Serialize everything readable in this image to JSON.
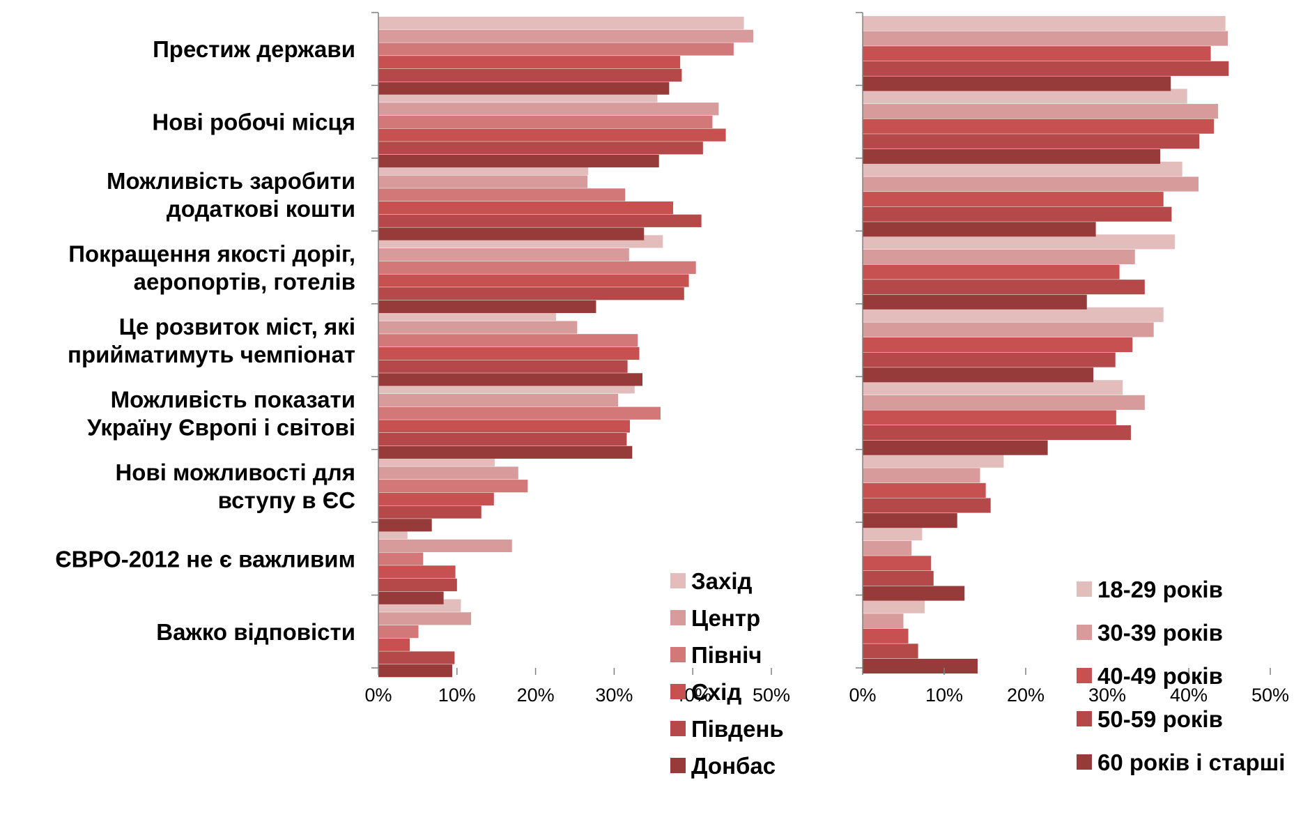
{
  "chart_data": [
    {
      "type": "bar",
      "orientation": "horizontal",
      "categories": [
        "Престиж держави",
        "Нові робочі місця",
        "Можливість заробити додаткові кошти",
        "Покращення якості доріг, аеропортів, готелів",
        "Це розвиток міст, які прийматимуть чемпіонат",
        "Можливість показати Україну Європі і світові",
        "Нові можливості для вступу в ЄС",
        "ЄВРО-2012 не є важливим",
        "Важко відповісти"
      ],
      "category_lines": [
        [
          "Престиж держави"
        ],
        [
          "Нові робочі місця"
        ],
        [
          "Можливість заробити",
          "додаткові кошти"
        ],
        [
          "Покращення якості доріг,",
          "аеропортів, готелів"
        ],
        [
          "Це розвиток міст, які",
          "прийматимуть чемпіонат"
        ],
        [
          "Можливість показати",
          "Україну Європі і світові"
        ],
        [
          "Нові можливості для",
          "вступу в ЄС"
        ],
        [
          "ЄВРО-2012 не є важливим"
        ],
        [
          "Важко відповісти"
        ]
      ],
      "series": [
        {
          "name": "Захід",
          "color": "#e3bcbc",
          "values": [
            46.5,
            35.5,
            26.7,
            36.2,
            22.6,
            32.6,
            14.8,
            3.7,
            10.5
          ]
        },
        {
          "name": "Центр",
          "color": "#d89b9b",
          "values": [
            47.7,
            43.3,
            26.6,
            31.9,
            25.3,
            30.5,
            17.8,
            17.0,
            11.8
          ]
        },
        {
          "name": "Північ",
          "color": "#d37878",
          "values": [
            45.2,
            42.5,
            31.4,
            40.4,
            33.0,
            35.9,
            19.0,
            5.7,
            5.1
          ]
        },
        {
          "name": "Схід",
          "color": "#c75050",
          "values": [
            38.4,
            44.2,
            37.5,
            39.5,
            33.2,
            32.0,
            14.7,
            9.8,
            4.0
          ]
        },
        {
          "name": "Південь",
          "color": "#b54848",
          "values": [
            38.6,
            41.3,
            41.1,
            38.9,
            31.7,
            31.6,
            13.1,
            10.0,
            9.7
          ]
        },
        {
          "name": "Донбас",
          "color": "#963a3a",
          "values": [
            37.0,
            35.7,
            33.8,
            27.7,
            33.6,
            32.3,
            6.8,
            8.3,
            9.4
          ]
        }
      ],
      "xlim": [
        0,
        50
      ],
      "xticks": [
        "0%",
        "10%",
        "20%",
        "30%",
        "40%",
        "50%"
      ],
      "legend_position": "bottom-right"
    },
    {
      "type": "bar",
      "orientation": "horizontal",
      "categories": [
        "Престиж держави",
        "Нові робочі місця",
        "Можливість заробити додаткові кошти",
        "Покращення якості доріг, аеропортів, готелів",
        "Це розвиток міст, які прийматимуть чемпіонат",
        "Можливість показати Україну Європі і світові",
        "Нові можливості для вступу в ЄС",
        "ЄВРО-2012 не є важливим",
        "Важко відповісти"
      ],
      "series": [
        {
          "name": "18-29 років",
          "color": "#e3bcbc",
          "values": [
            44.5,
            39.8,
            39.2,
            38.3,
            36.9,
            31.9,
            17.3,
            7.3,
            7.6
          ]
        },
        {
          "name": "30-39 років",
          "color": "#d89b9b",
          "values": [
            44.8,
            43.6,
            41.2,
            33.4,
            35.7,
            34.6,
            14.4,
            6.0,
            5.0
          ]
        },
        {
          "name": "40-49 років",
          "color": "#c75050",
          "values": [
            42.7,
            43.1,
            36.9,
            31.5,
            33.1,
            31.1,
            15.1,
            8.4,
            5.6
          ]
        },
        {
          "name": "50-59 років",
          "color": "#b54848",
          "values": [
            44.9,
            41.3,
            37.9,
            34.6,
            31.0,
            32.9,
            15.7,
            8.7,
            6.8
          ]
        },
        {
          "name": "60 років і старші",
          "color": "#963a3a",
          "values": [
            37.8,
            36.5,
            28.6,
            27.5,
            28.3,
            22.7,
            11.6,
            12.5,
            14.1
          ]
        }
      ],
      "xlim": [
        0,
        50
      ],
      "xticks": [
        "0%",
        "10%",
        "20%",
        "30%",
        "40%",
        "50%"
      ],
      "legend_position": "bottom-right"
    }
  ]
}
